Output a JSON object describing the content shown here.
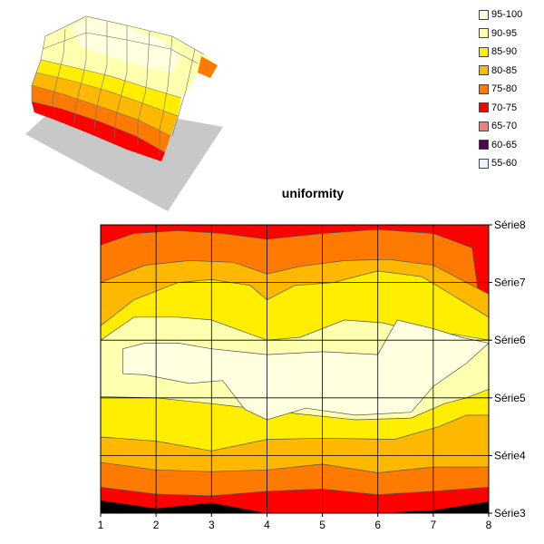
{
  "chart_data": {
    "type": "heatmap",
    "title": "uniformity",
    "x": [
      1,
      2,
      3,
      4,
      5,
      6,
      7,
      8
    ],
    "series": [
      "Série3",
      "Série4",
      "Série5",
      "Série6",
      "Série7",
      "Série8"
    ],
    "legend": {
      "position": "top-right",
      "entries": [
        {
          "label": "95-100",
          "color": "#FFFFE0"
        },
        {
          "label": "90-95",
          "color": "#FFFFB0"
        },
        {
          "label": "85-90",
          "color": "#FFEE00"
        },
        {
          "label": "80-85",
          "color": "#FFB800"
        },
        {
          "label": "75-80",
          "color": "#FF7A00"
        },
        {
          "label": "70-75",
          "color": "#FF0000"
        },
        {
          "label": "65-70",
          "color": "#F08080"
        },
        {
          "label": "60-65",
          "color": "#550055"
        },
        {
          "label": "55-60",
          "color": "#EAF6FF"
        }
      ]
    },
    "bands": [
      {
        "range": "70-75",
        "color": "#FF0000",
        "outline": false,
        "points": [
          [
            1,
            8
          ],
          [
            8,
            8
          ],
          [
            8,
            3
          ],
          [
            1,
            3
          ]
        ]
      },
      {
        "range": "75-80",
        "color": "#FF7A00",
        "outline": true,
        "points": [
          [
            1,
            7.65
          ],
          [
            1.6,
            7.85
          ],
          [
            2.4,
            7.9
          ],
          [
            3.2,
            7.85
          ],
          [
            4,
            7.75
          ],
          [
            5,
            7.85
          ],
          [
            6,
            7.92
          ],
          [
            7,
            7.85
          ],
          [
            7.7,
            7.6
          ],
          [
            7.8,
            6.9
          ],
          [
            8,
            6.75
          ],
          [
            8,
            3.45
          ],
          [
            7,
            3.38
          ],
          [
            6,
            3.32
          ],
          [
            5,
            3.42
          ],
          [
            4,
            3.38
          ],
          [
            3,
            3.3
          ],
          [
            2,
            3.33
          ],
          [
            1,
            3.45
          ]
        ]
      },
      {
        "range": "80-85",
        "color": "#FFB800",
        "outline": true,
        "points": [
          [
            1,
            7.0
          ],
          [
            1.8,
            7.3
          ],
          [
            2.6,
            7.38
          ],
          [
            3.4,
            7.35
          ],
          [
            4,
            7.15
          ],
          [
            4.6,
            7.28
          ],
          [
            5.4,
            7.38
          ],
          [
            6.2,
            7.4
          ],
          [
            7,
            7.3
          ],
          [
            7.8,
            6.9
          ],
          [
            8,
            6.8
          ],
          [
            8,
            3.8
          ],
          [
            7,
            3.8
          ],
          [
            6,
            3.7
          ],
          [
            5,
            3.85
          ],
          [
            4,
            3.75
          ],
          [
            3,
            3.72
          ],
          [
            2,
            3.75
          ],
          [
            1,
            3.88
          ]
        ]
      },
      {
        "range": "85-90",
        "color": "#FFEE00",
        "outline": true,
        "points": [
          [
            1,
            6.25
          ],
          [
            1.6,
            6.7
          ],
          [
            2.4,
            7.0
          ],
          [
            3,
            7.05
          ],
          [
            3.7,
            6.95
          ],
          [
            4,
            6.7
          ],
          [
            4.5,
            6.95
          ],
          [
            5.2,
            7.0
          ],
          [
            6,
            7.2
          ],
          [
            6.8,
            7.1
          ],
          [
            7.4,
            6.75
          ],
          [
            8,
            6.4
          ],
          [
            8,
            4.7
          ],
          [
            7.6,
            4.7
          ],
          [
            7.1,
            4.5
          ],
          [
            6.3,
            4.28
          ],
          [
            5,
            4.3
          ],
          [
            4,
            4.28
          ],
          [
            3,
            4.08
          ],
          [
            2,
            4.25
          ],
          [
            1,
            4.32
          ]
        ]
      },
      {
        "range": "90-95",
        "color": "#FFFFB0",
        "outline": true,
        "points": [
          [
            1,
            6.0
          ],
          [
            1.6,
            6.4
          ],
          [
            2.4,
            6.4
          ],
          [
            3,
            6.35
          ],
          [
            4,
            6.0
          ],
          [
            4.6,
            6.05
          ],
          [
            5.4,
            6.35
          ],
          [
            6.1,
            6.3
          ],
          [
            6.7,
            6.15
          ],
          [
            7.4,
            6.1
          ],
          [
            8,
            6.0
          ],
          [
            8,
            5.15
          ],
          [
            7.6,
            5.0
          ],
          [
            7.2,
            4.9
          ],
          [
            6.6,
            4.65
          ],
          [
            5.6,
            4.62
          ],
          [
            4.6,
            4.72
          ],
          [
            3,
            4.9
          ],
          [
            2,
            5.0
          ],
          [
            1,
            5.02
          ]
        ]
      },
      {
        "range": "95-100",
        "color": "#FFFFE0",
        "outline": true,
        "points": [
          [
            1.4,
            5.85
          ],
          [
            1.8,
            5.95
          ],
          [
            2.4,
            5.95
          ],
          [
            3,
            5.85
          ],
          [
            4,
            5.75
          ],
          [
            5,
            5.8
          ],
          [
            6,
            5.75
          ],
          [
            6.35,
            6.35
          ],
          [
            7,
            6.2
          ],
          [
            7.5,
            6.05
          ],
          [
            8,
            5.95
          ],
          [
            7.6,
            5.6
          ],
          [
            7,
            5.2
          ],
          [
            6.6,
            4.75
          ],
          [
            5.6,
            4.7
          ],
          [
            4.7,
            4.82
          ],
          [
            4,
            4.62
          ],
          [
            3.6,
            4.8
          ],
          [
            3.2,
            5.3
          ],
          [
            2.6,
            5.25
          ],
          [
            1.8,
            5.4
          ],
          [
            1.4,
            5.42
          ]
        ]
      }
    ],
    "bottom_band": {
      "color": "#000000",
      "points": [
        [
          1,
          3.22
        ],
        [
          2,
          3.08
        ],
        [
          3,
          3.18
        ],
        [
          4,
          3.0
        ],
        [
          5,
          3.0
        ],
        [
          6,
          3.0
        ],
        [
          7,
          3.05
        ],
        [
          8,
          3.2
        ],
        [
          8,
          3
        ],
        [
          1,
          3
        ]
      ]
    }
  }
}
